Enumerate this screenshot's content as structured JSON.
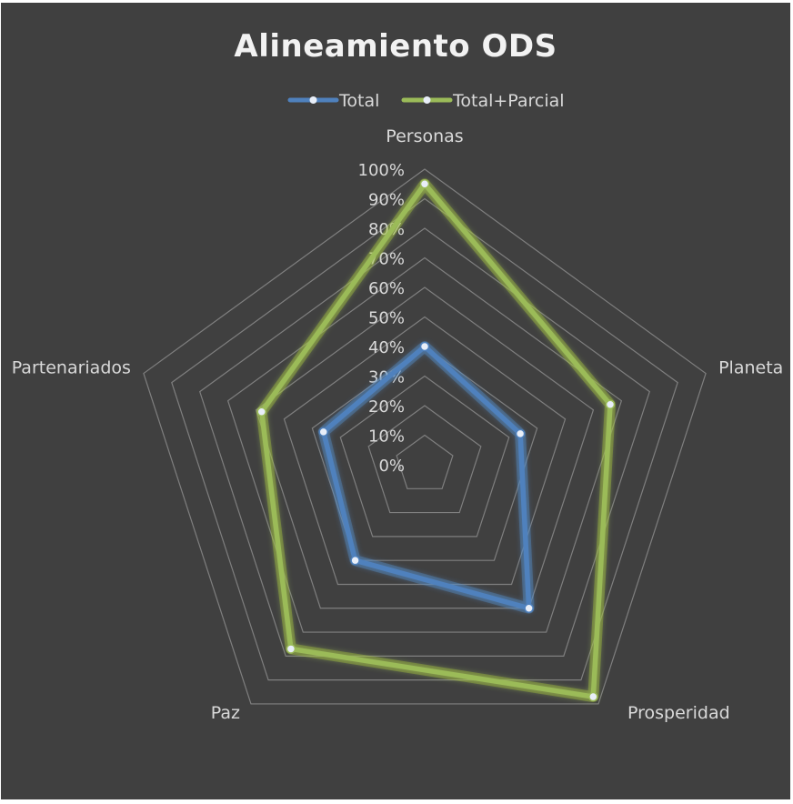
{
  "chart_data": {
    "type": "radar",
    "title": "Alineamiento  ODS",
    "categories": [
      "Personas",
      "Planeta",
      "Prosperidad",
      "Paz",
      "Partenariados"
    ],
    "r_ticks": [
      "0%",
      "10%",
      "20%",
      "30%",
      "40%",
      "50%",
      "60%",
      "70%",
      "80%",
      "90%",
      "100%"
    ],
    "r_range": [
      0,
      1
    ],
    "grid": true,
    "legend_position": "top",
    "series": [
      {
        "name": "Total",
        "values": [
          0.4,
          0.34,
          0.6,
          0.4,
          0.36
        ],
        "color": "#4f81bd",
        "glow": "#5b9bd5"
      },
      {
        "name": "Total+Parcial",
        "values": [
          0.95,
          0.66,
          0.97,
          0.77,
          0.58
        ],
        "color": "#9bbb59",
        "glow": "#b5d334"
      }
    ],
    "colors": {
      "background": "#404040",
      "gridline": "#7f7f7f",
      "text": "#d9d9d9",
      "title": "#f2f2f2"
    }
  }
}
